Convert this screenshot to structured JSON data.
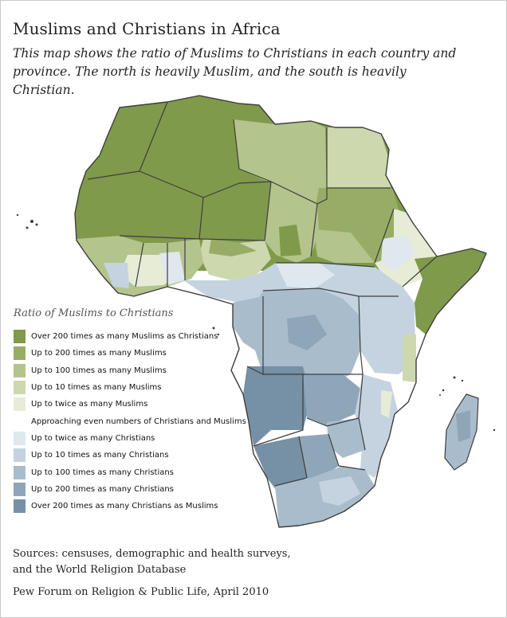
{
  "title": "Muslims and Christians in Africa",
  "subtitle": "This map shows the ratio of Muslims to Christians in each country and province. The north is heavily Muslim, and the south is heavily Christian.",
  "legend": {
    "title": "Ratio of Muslims to Christians",
    "items": [
      {
        "label": "Over 200 times as many Muslims as Christians",
        "color": "#7f9a4a"
      },
      {
        "label": "Up to 200 times as many Muslims",
        "color": "#97ad66"
      },
      {
        "label": "Up to 100 times as many Muslims",
        "color": "#b3c48c"
      },
      {
        "label": "Up to 10 times as many Muslims",
        "color": "#cdd8ae"
      },
      {
        "label": "Up to twice as many Muslims",
        "color": "#e6ecd6"
      }
    ],
    "neutral_label": "Approaching even numbers of Christians and Muslims",
    "items_christian": [
      {
        "label": "Up to twice as many Christians",
        "color": "#dfe8ef"
      },
      {
        "label": "Up to 10 times as many Christians",
        "color": "#c4d3df"
      },
      {
        "label": "Up to 100 times as many Christians",
        "color": "#a9bccc"
      },
      {
        "label": "Up to 200 times as many Christians",
        "color": "#8fa6b8"
      },
      {
        "label": "Over 200 times as many Christians as Muslims",
        "color": "#7690a5"
      }
    ]
  },
  "sources": {
    "line1": "Sources: censuses, demographic and health surveys,",
    "line2": "and the World Religion Database"
  },
  "credit": "Pew Forum on Religion & Public Life, April 2010"
}
